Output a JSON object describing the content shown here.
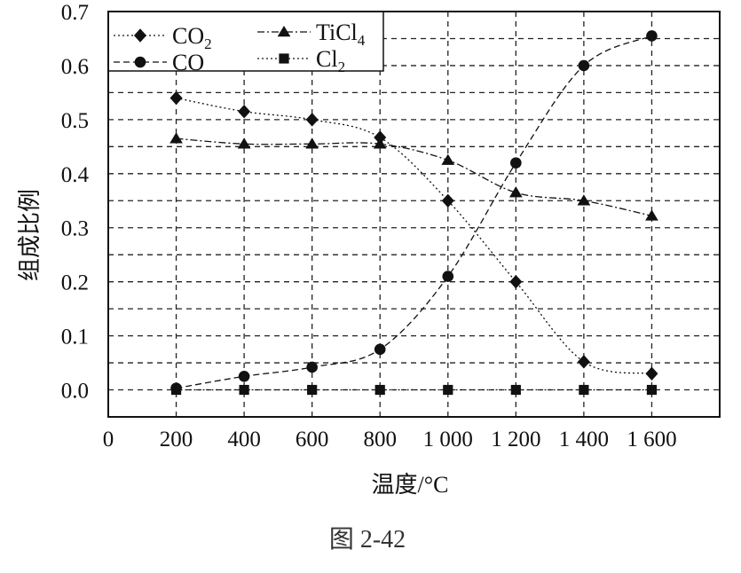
{
  "chart_data": {
    "type": "line",
    "xlabel": "温度/°C",
    "ylabel": "组成比例",
    "x_ticks": [
      "0",
      "200",
      "400",
      "600",
      "800",
      "1 000",
      "1 200",
      "1 400",
      "1 600"
    ],
    "y_ticks": [
      "0.0",
      "0.1",
      "0.2",
      "0.3",
      "0.4",
      "0.5",
      "0.6",
      "0.7"
    ],
    "xlim": [
      0,
      1800
    ],
    "ylim": [
      -0.05,
      0.7
    ],
    "grid": true,
    "legend_position": "top-left",
    "x": [
      200,
      400,
      600,
      800,
      1000,
      1200,
      1400,
      1600
    ],
    "series": [
      {
        "name": "CO",
        "name_sub": "2",
        "marker": "diamond",
        "line": "dotted",
        "values": [
          0.54,
          0.515,
          0.5,
          0.467,
          0.35,
          0.2,
          0.052,
          0.03
        ]
      },
      {
        "name": "CO",
        "name_sub": "",
        "marker": "circle",
        "line": "dashed",
        "values": [
          0.003,
          0.025,
          0.042,
          0.075,
          0.21,
          0.42,
          0.6,
          0.655
        ]
      },
      {
        "name": "TiCl",
        "name_sub": "4",
        "marker": "triangle",
        "line": "dashdot",
        "values": [
          0.465,
          0.455,
          0.455,
          0.455,
          0.425,
          0.365,
          0.35,
          0.322
        ]
      },
      {
        "name": "Cl",
        "name_sub": "2",
        "marker": "square",
        "line": "dotted",
        "values": [
          0.0,
          0.0,
          0.0,
          0.0,
          0.0,
          0.0,
          0.0,
          0.0
        ]
      }
    ],
    "caption": "图 2-42",
    "colors": {
      "ink": "#111111",
      "background": "#ffffff"
    }
  }
}
